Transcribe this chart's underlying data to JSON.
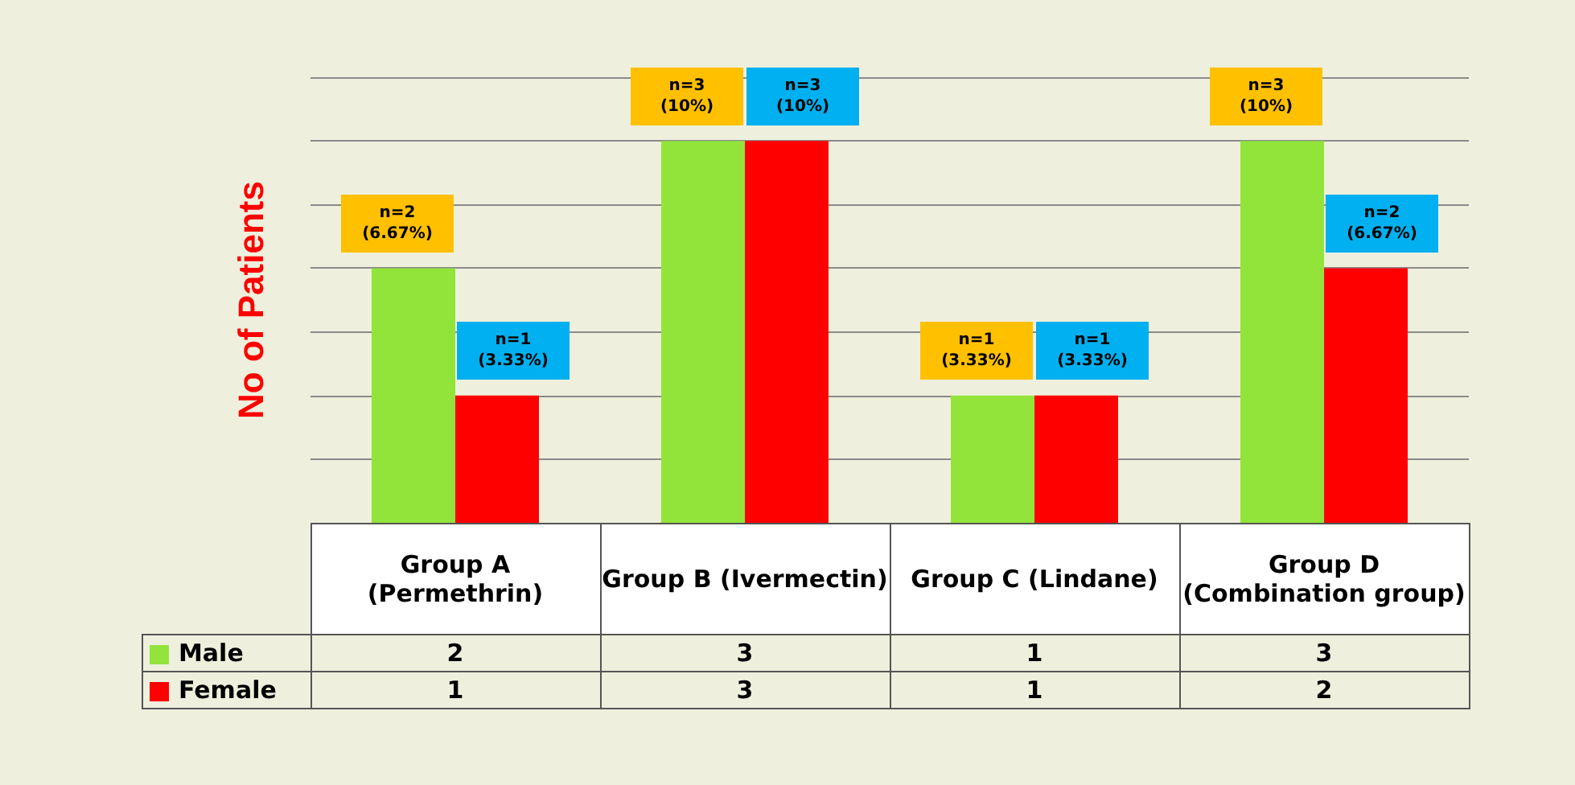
{
  "chart_data": {
    "type": "bar",
    "ylabel": "No of Patients",
    "categories": [
      "Group A (Permethrin)",
      "Group B (Ivermectin)",
      "Group C (Lindane)",
      "Group D (Combination group)"
    ],
    "series": [
      {
        "name": "Male",
        "color": "#92e43a",
        "values": [
          2,
          3,
          1,
          3
        ]
      },
      {
        "name": "Female",
        "color": "#ff0000",
        "values": [
          1,
          3,
          1,
          2
        ]
      }
    ],
    "annotations": [
      {
        "text": "n=2 (6.67%)",
        "x": "Group A (Permethrin)",
        "y": 2
      },
      {
        "text": "n=1 (3.33%)",
        "x": "Group A (Permethrin)",
        "y": 1
      },
      {
        "text": "n=3 (10%)",
        "x": "Group B (Ivermectin)",
        "y": 3
      },
      {
        "text": "n=3 (10%)",
        "x": "Group B (Ivermectin)",
        "y": 3
      },
      {
        "text": "n=1 (3.33%)",
        "x": "Group C (Lindane)",
        "y": 1
      },
      {
        "text": "n=1 (3.33%)",
        "x": "Group C (Lindane)",
        "y": 1
      },
      {
        "text": "n=3 (10%)",
        "x": "Group D (Combination group)",
        "y": 3
      },
      {
        "text": "n=2 (6.67%)",
        "x": "Group D (Combination group)",
        "y": 2
      }
    ],
    "ylim": [
      0,
      3.5
    ],
    "yticks": [
      {
        "value": 0.5,
        "label": null
      },
      {
        "value": 1,
        "label": null
      },
      {
        "value": 1.5,
        "label": null
      },
      {
        "value": 2,
        "label": null
      },
      {
        "value": 2.5,
        "label": null
      },
      {
        "value": 3,
        "label": null
      },
      {
        "value": 3.5,
        "label": null
      }
    ],
    "tick_labels": "x",
    "grid": "y",
    "data_labels": true,
    "legend": "bottom left"
  }
}
